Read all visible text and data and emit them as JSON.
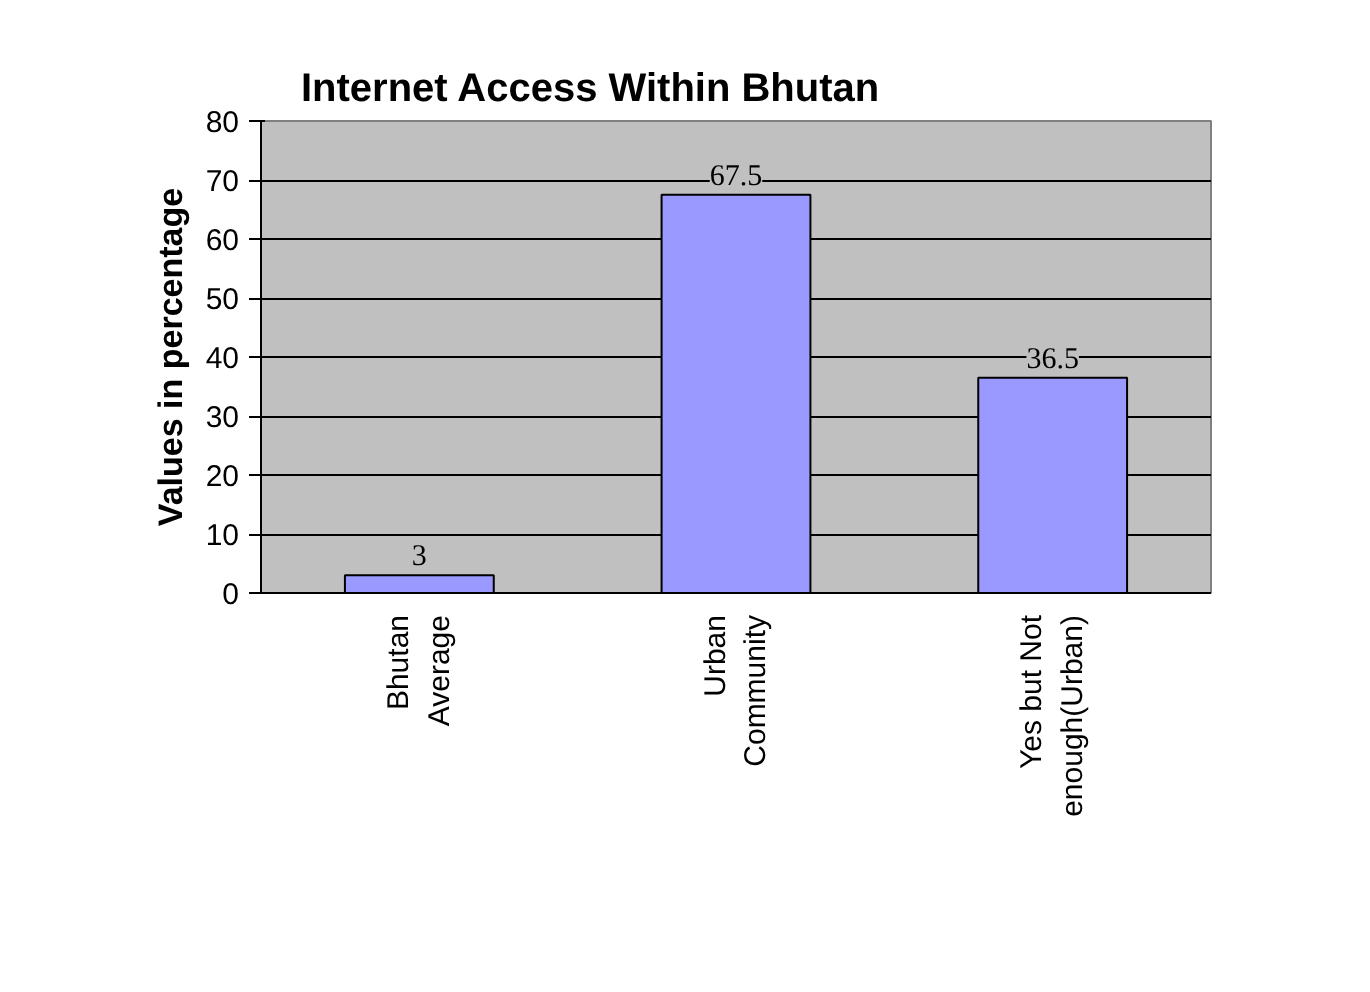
{
  "chart_data": {
    "type": "bar",
    "title": "Internet Access Within Bhutan",
    "ylabel": "Values in percentage",
    "categories": [
      "Bhutan\nAverage",
      "Urban\nCommunity",
      "Yes but Not\nenough(Urban)"
    ],
    "values": [
      3,
      67.5,
      36.5
    ],
    "color": "#9999ff",
    "ylim": [
      0,
      80
    ],
    "yticks": [
      0,
      10,
      20,
      30,
      40,
      50,
      60,
      70,
      80
    ],
    "grid": "y",
    "data_labels": true
  }
}
